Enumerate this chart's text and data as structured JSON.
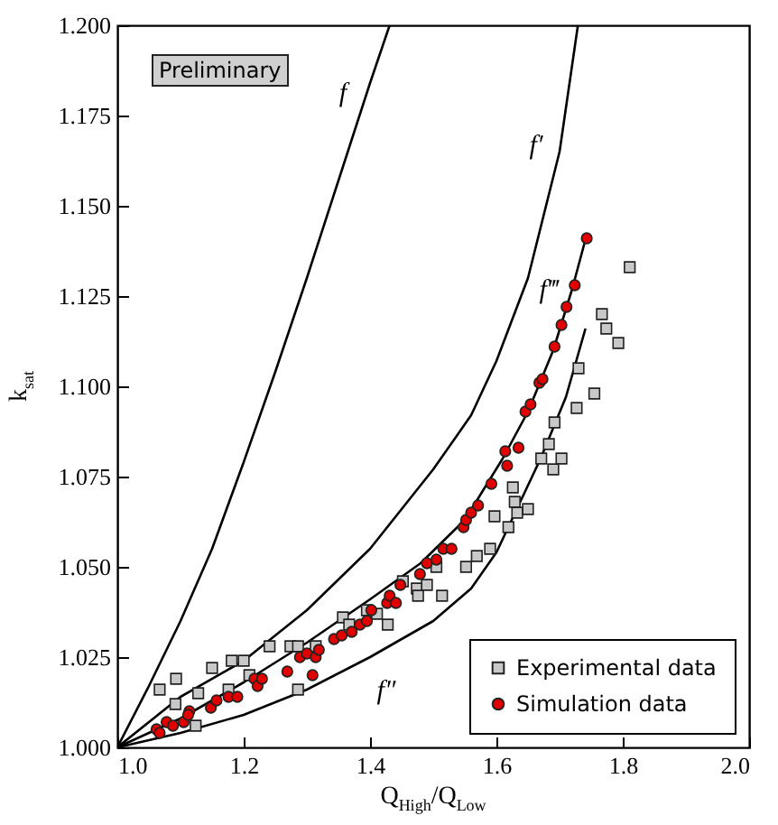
{
  "chart_data": {
    "type": "scatter",
    "xlabel": "Q$_{High}$/Q$_{Low}$",
    "ylabel": "k$_{sat}$",
    "xlim": [
      1.0,
      2.0
    ],
    "ylim": [
      1.0,
      1.2
    ],
    "xticks": [
      {
        "value": 1.0,
        "label": "1.0"
      },
      {
        "value": 1.2,
        "label": "1.2"
      },
      {
        "value": 1.4,
        "label": "1.4"
      },
      {
        "value": 1.6,
        "label": "1.6"
      },
      {
        "value": 1.8,
        "label": "1.8"
      },
      {
        "value": 2.0,
        "label": "2.0"
      }
    ],
    "yticks": [
      {
        "value": 1.0,
        "label": "1.000"
      },
      {
        "value": 1.025,
        "label": "1.025"
      },
      {
        "value": 1.05,
        "label": "1.050"
      },
      {
        "value": 1.075,
        "label": "1.075"
      },
      {
        "value": 1.1,
        "label": "1.100"
      },
      {
        "value": 1.125,
        "label": "1.125"
      },
      {
        "value": 1.15,
        "label": "1.150"
      },
      {
        "value": 1.175,
        "label": "1.175"
      },
      {
        "value": 1.2,
        "label": "1.200"
      }
    ],
    "grid": false,
    "legend": "bottom right",
    "annotations": [
      "Preliminary"
    ],
    "series": [
      {
        "type": "line",
        "name": "f",
        "color": "#000000",
        "marker": "none",
        "x": [
          1.0,
          1.05,
          1.1,
          1.15,
          1.2,
          1.25,
          1.3,
          1.35,
          1.4,
          1.431
        ],
        "values": [
          1.0,
          1.017,
          1.035,
          1.055,
          1.079,
          1.104,
          1.13,
          1.157,
          1.184,
          1.2
        ]
      },
      {
        "type": "line",
        "name": "f′",
        "color": "#000000",
        "marker": "none",
        "x": [
          1.0,
          1.1,
          1.2,
          1.3,
          1.4,
          1.5,
          1.56,
          1.6,
          1.65,
          1.7,
          1.729
        ],
        "values": [
          1.0,
          1.014,
          1.024,
          1.038,
          1.055,
          1.077,
          1.092,
          1.107,
          1.13,
          1.165,
          1.2
        ]
      },
      {
        "type": "line",
        "name": "f‴",
        "color": "#000000",
        "marker": "none",
        "x": [
          1.0,
          1.1,
          1.2,
          1.3,
          1.4,
          1.48,
          1.55,
          1.61,
          1.65,
          1.69,
          1.72,
          1.743
        ],
        "values": [
          1.0,
          1.008,
          1.018,
          1.029,
          1.041,
          1.051,
          1.063,
          1.08,
          1.093,
          1.11,
          1.127,
          1.142
        ]
      },
      {
        "type": "line",
        "name": "f″",
        "color": "#000000",
        "marker": "none",
        "x": [
          1.0,
          1.1,
          1.2,
          1.3,
          1.4,
          1.5,
          1.56,
          1.6,
          1.67,
          1.71,
          1.741
        ],
        "values": [
          1.0,
          1.004,
          1.009,
          1.016,
          1.025,
          1.035,
          1.044,
          1.054,
          1.08,
          1.097,
          1.116
        ]
      },
      {
        "name": "Experimental data",
        "color": "#c8c8c8",
        "marker": "square",
        "x": [
          1.067,
          1.093,
          1.092,
          1.128,
          1.124,
          1.15,
          1.181,
          1.2,
          1.176,
          1.209,
          1.241,
          1.274,
          1.286,
          1.286,
          1.314,
          1.357,
          1.367,
          1.395,
          1.411,
          1.428,
          1.452,
          1.474,
          1.49,
          1.514,
          1.505,
          1.476,
          1.552,
          1.569,
          1.59,
          1.597,
          1.619,
          1.629,
          1.633,
          1.65,
          1.626,
          1.671,
          1.69,
          1.703,
          1.683,
          1.692,
          1.727,
          1.755,
          1.73,
          1.793,
          1.774,
          1.767,
          1.811
        ],
        "values": [
          1.016,
          1.019,
          1.012,
          1.015,
          1.006,
          1.022,
          1.024,
          1.024,
          1.016,
          1.02,
          1.028,
          1.028,
          1.028,
          1.016,
          1.028,
          1.036,
          1.034,
          1.038,
          1.037,
          1.034,
          1.046,
          1.044,
          1.045,
          1.042,
          1.05,
          1.042,
          1.05,
          1.053,
          1.055,
          1.064,
          1.061,
          1.068,
          1.065,
          1.066,
          1.072,
          1.08,
          1.077,
          1.08,
          1.084,
          1.09,
          1.094,
          1.098,
          1.105,
          1.112,
          1.116,
          1.12,
          1.133
        ]
      },
      {
        "name": "Simulation data",
        "color": "#e00000",
        "marker": "circle",
        "x": [
          1.062,
          1.067,
          1.078,
          1.088,
          1.105,
          1.114,
          1.112,
          1.148,
          1.157,
          1.176,
          1.19,
          1.217,
          1.222,
          1.229,
          1.269,
          1.289,
          1.3,
          1.309,
          1.314,
          1.319,
          1.343,
          1.355,
          1.371,
          1.384,
          1.395,
          1.402,
          1.427,
          1.431,
          1.441,
          1.448,
          1.479,
          1.49,
          1.505,
          1.516,
          1.529,
          1.548,
          1.552,
          1.56,
          1.571,
          1.592,
          1.617,
          1.614,
          1.635,
          1.646,
          1.654,
          1.668,
          1.673,
          1.692,
          1.703,
          1.711,
          1.724,
          1.743
        ],
        "values": [
          1.005,
          1.004,
          1.007,
          1.006,
          1.007,
          1.01,
          1.009,
          1.011,
          1.013,
          1.014,
          1.014,
          1.019,
          1.017,
          1.019,
          1.021,
          1.025,
          1.026,
          1.02,
          1.025,
          1.027,
          1.03,
          1.031,
          1.032,
          1.034,
          1.035,
          1.038,
          1.04,
          1.042,
          1.04,
          1.045,
          1.048,
          1.051,
          1.052,
          1.055,
          1.055,
          1.061,
          1.063,
          1.065,
          1.067,
          1.073,
          1.078,
          1.082,
          1.083,
          1.093,
          1.095,
          1.101,
          1.102,
          1.111,
          1.117,
          1.122,
          1.128,
          1.141
        ]
      }
    ]
  }
}
